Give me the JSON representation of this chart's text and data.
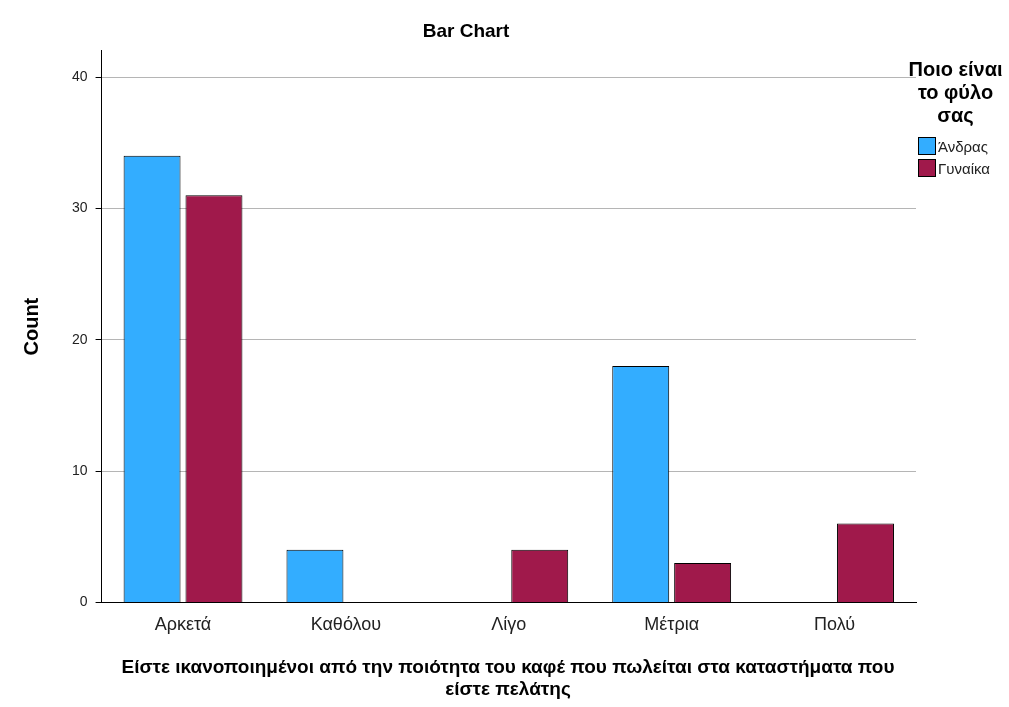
{
  "chart_data": {
    "type": "bar",
    "title": "Bar Chart",
    "xlabel": "Είστε ικανοποιημένοι από την ποιότητα του καφέ που πωλείται στα καταστήματα που είστε πελάτης",
    "ylabel": "Count",
    "legend_title": "Ποιο είναι το φύλο σας",
    "categories": [
      "Αρκετά",
      "Καθόλου",
      "Λίγο",
      "Μέτρια",
      "Πολύ"
    ],
    "series": [
      {
        "name": "Άνδρας",
        "color": "#33adff",
        "values": [
          34,
          4,
          null,
          18,
          null
        ]
      },
      {
        "name": "Γυναίκα",
        "color": "#a0194b",
        "values": [
          31,
          null,
          4,
          3,
          6
        ]
      }
    ],
    "ylim": [
      0,
      42
    ],
    "yticks": [
      0,
      10,
      20,
      30,
      40
    ],
    "grid": "y",
    "legend": "right"
  }
}
